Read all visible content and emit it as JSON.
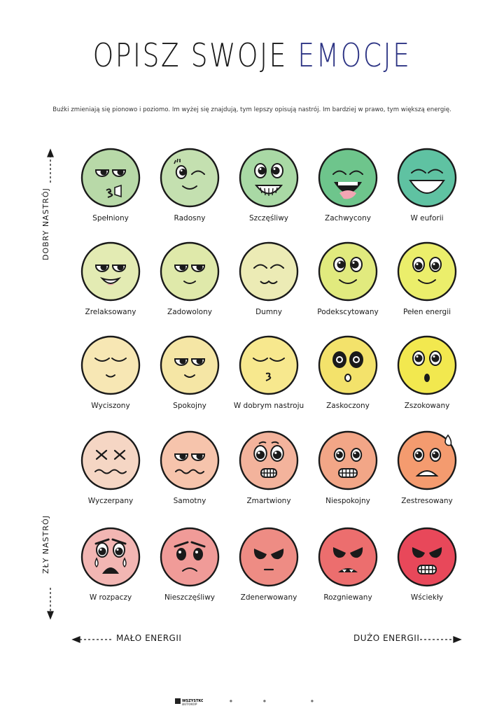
{
  "title": {
    "part1": "OPISZ SWOJE",
    "part2": "EMOCJE",
    "accent_color": "#2d3484"
  },
  "subtitle": "Buźki zmieniają się pionowo i poziomo. Im wyżej się znajdują, tym lepszy opisują nastrój. Im bardziej w prawo, tym większą energię.",
  "axes": {
    "top_left": "DOBRY NASTRÓJ",
    "bottom_left": "ZŁY NASTRÓJ",
    "low_energy": "MAŁO ENERGII",
    "high_energy": "DUŻO ENERGII"
  },
  "rows": [
    [
      {
        "label": "Spełniony",
        "color": "#b8d9a8",
        "face": "kiss-wink"
      },
      {
        "label": "Radosny",
        "color": "#c4e0b0",
        "face": "wink"
      },
      {
        "label": "Szczęśliwy",
        "color": "#a9d9a5",
        "face": "grin-teeth"
      },
      {
        "label": "Zachwycony",
        "color": "#6ec58c",
        "face": "laugh-tongue"
      },
      {
        "label": "W euforii",
        "color": "#5fc2a2",
        "face": "euphoria"
      }
    ],
    [
      {
        "label": "Zrelaksowany",
        "color": "#e3ebb3",
        "face": "relaxed-smile"
      },
      {
        "label": "Zadowolony",
        "color": "#dfe9aa",
        "face": "content"
      },
      {
        "label": "Dumny",
        "color": "#ecebb5",
        "face": "proud"
      },
      {
        "label": "Podekscytowany",
        "color": "#e1ea7e",
        "face": "excited"
      },
      {
        "label": "Pełen energii",
        "color": "#ebee6b",
        "face": "energetic"
      }
    ],
    [
      {
        "label": "Wyciszony",
        "color": "#f7e7b4",
        "face": "calm"
      },
      {
        "label": "Spokojny",
        "color": "#f5e6a5",
        "face": "peaceful"
      },
      {
        "label": "W dobrym nastroju",
        "color": "#f7e88e",
        "face": "kiss-closed"
      },
      {
        "label": "Zaskoczony",
        "color": "#f3e26b",
        "face": "surprised"
      },
      {
        "label": "Zszokowany",
        "color": "#f2e84f",
        "face": "shocked"
      }
    ],
    [
      {
        "label": "Wyczerpany",
        "color": "#f5d6c4",
        "face": "exhausted"
      },
      {
        "label": "Samotny",
        "color": "#f6c4ac",
        "face": "lonely"
      },
      {
        "label": "Zmartwiony",
        "color": "#f3b39c",
        "face": "worried"
      },
      {
        "label": "Niespokojny",
        "color": "#f2a687",
        "face": "anxious"
      },
      {
        "label": "Zestresowany",
        "color": "#f49b6f",
        "face": "stressed"
      }
    ],
    [
      {
        "label": "W rozpaczy",
        "color": "#f2b6b3",
        "face": "despair"
      },
      {
        "label": "Nieszczęśliwy",
        "color": "#f09b98",
        "face": "sad"
      },
      {
        "label": "Zdenerwowany",
        "color": "#ee8c84",
        "face": "annoyed"
      },
      {
        "label": "Rozgniewany",
        "color": "#ec6e6e",
        "face": "angry"
      },
      {
        "label": "Wściekły",
        "color": "#e8485a",
        "face": "furious"
      }
    ]
  ],
  "footer": {
    "logo": "WSZYSTKO\nAUTOKOP"
  }
}
